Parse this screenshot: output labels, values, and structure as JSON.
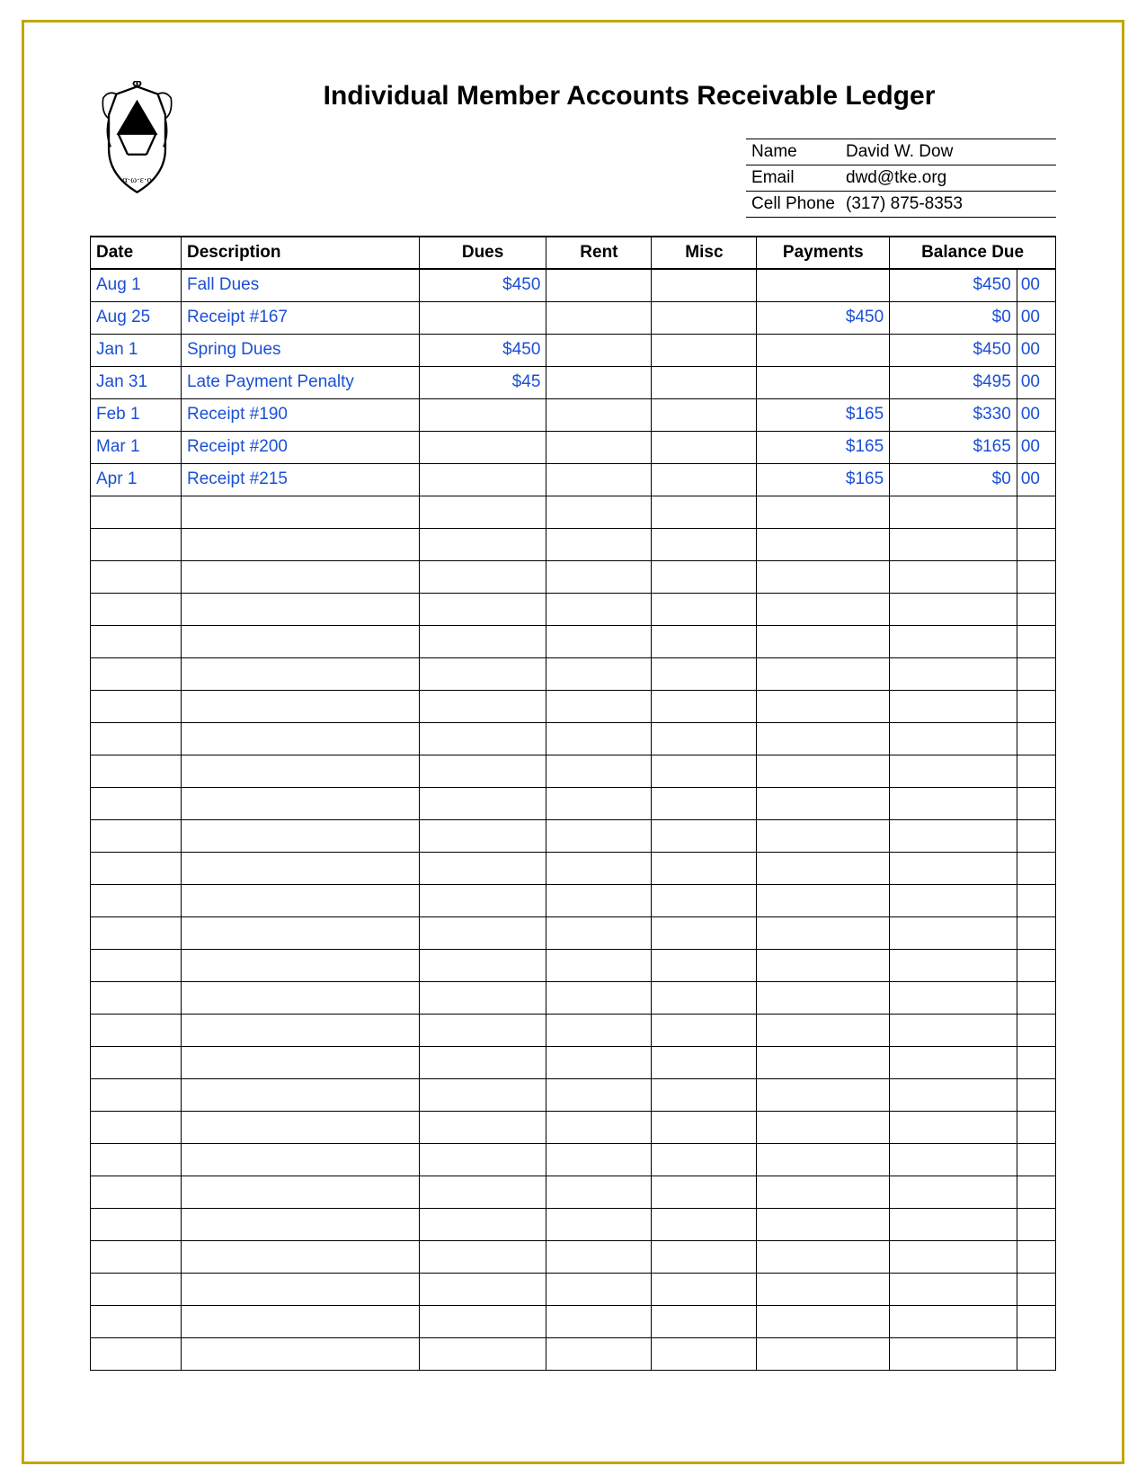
{
  "title": "Individual Member Accounts Receivable Ledger",
  "info": {
    "name_label": "Name",
    "name_value": "David W. Dow",
    "email_label": "Email",
    "email_value": "dwd@tke.org",
    "phone_label": "Cell Phone",
    "phone_value": "(317) 875-8353"
  },
  "columns": {
    "date": "Date",
    "description": "Description",
    "dues": "Dues",
    "rent": "Rent",
    "misc": "Misc",
    "payments": "Payments",
    "balance": "Balance Due"
  },
  "rows": [
    {
      "date": "Aug 1",
      "description": "Fall Dues",
      "dues": "$450",
      "rent": "",
      "misc": "",
      "payments": "",
      "balance": "$450",
      "cents": "00"
    },
    {
      "date": "Aug 25",
      "description": "Receipt #167",
      "dues": "",
      "rent": "",
      "misc": "",
      "payments": "$450",
      "balance": "$0",
      "cents": "00"
    },
    {
      "date": "Jan 1",
      "description": "Spring Dues",
      "dues": "$450",
      "rent": "",
      "misc": "",
      "payments": "",
      "balance": "$450",
      "cents": "00"
    },
    {
      "date": "Jan 31",
      "description": "Late Payment Penalty",
      "dues": "$45",
      "rent": "",
      "misc": "",
      "payments": "",
      "balance": "$495",
      "cents": "00"
    },
    {
      "date": "Feb 1",
      "description": "Receipt #190",
      "dues": "",
      "rent": "",
      "misc": "",
      "payments": "$165",
      "balance": "$330",
      "cents": "00"
    },
    {
      "date": "Mar 1",
      "description": "Receipt #200",
      "dues": "",
      "rent": "",
      "misc": "",
      "payments": "$165",
      "balance": "$165",
      "cents": "00"
    },
    {
      "date": "Apr 1",
      "description": "Receipt #215",
      "dues": "",
      "rent": "",
      "misc": "",
      "payments": "$165",
      "balance": "$0",
      "cents": "00"
    }
  ],
  "empty_row_count": 27,
  "style": {
    "page_border_color": "#c2a600",
    "data_text_color": "#1a4fd6",
    "header_text_color": "#000000",
    "border_color": "#000000",
    "background_color": "#ffffff",
    "title_fontsize": 30,
    "cell_fontsize": 19,
    "font_family": "Arial"
  }
}
